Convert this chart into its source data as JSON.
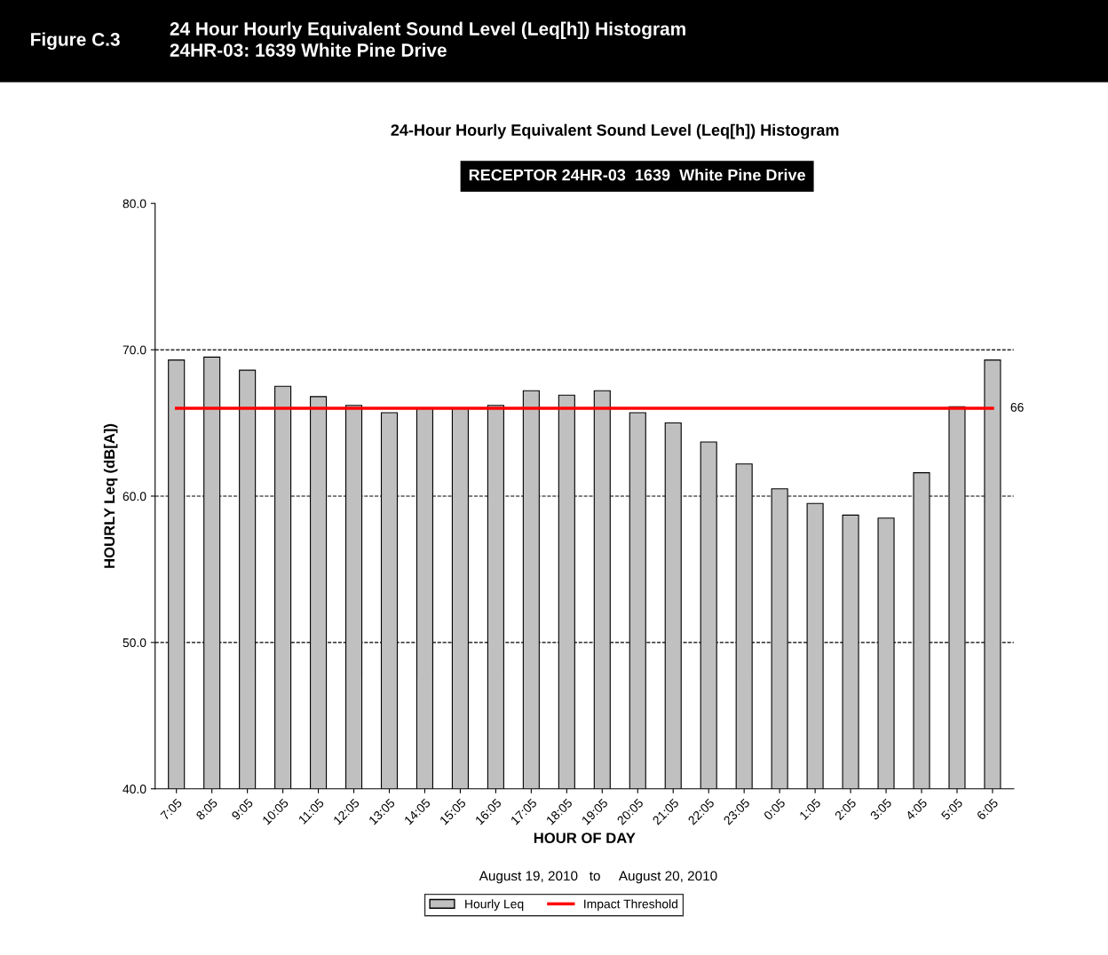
{
  "chart_data": {
    "type": "bar",
    "title": "24-Hour Hourly Equivalent Sound Level (Leq[h]) Histogram",
    "subtitle": "RECEPTOR 24HR-03  1639  White Pine Drive",
    "xlabel": "HOUR OF DAY",
    "ylabel": "HOURLY Leq (dB[A])",
    "annotations": [
      "Figure C.3",
      "24 Hour Hourly Equivalent Sound Level (Leq[h]) Histogram\n24HR-03: 1639 White Pine Drive",
      "August 19, 2010   to     August 20, 2010",
      {
        "text": "66",
        "x": "6:05",
        "y": 66
      }
    ],
    "categories": [
      "7:05",
      "8:05",
      "9:05",
      "10:05",
      "11:05",
      "12:05",
      "13:05",
      "14:05",
      "15:05",
      "16:05",
      "17:05",
      "18:05",
      "19:05",
      "20:05",
      "21:05",
      "22:05",
      "23:05",
      "0:05",
      "1:05",
      "2:05",
      "3:05",
      "4:05",
      "5:05",
      "6:05"
    ],
    "series": [
      {
        "name": "Hourly Leq",
        "color": "#c0c0c0",
        "values": [
          69.3,
          69.5,
          68.6,
          67.5,
          66.8,
          66.2,
          65.7,
          66.0,
          66.0,
          66.2,
          67.2,
          66.9,
          67.2,
          65.7,
          65.0,
          63.7,
          62.2,
          60.5,
          59.5,
          58.7,
          58.5,
          61.6,
          66.1,
          69.3
        ]
      },
      {
        "name": "Impact Threshold",
        "type": "line",
        "color": "#ff0000",
        "values": [
          66,
          66,
          66,
          66,
          66,
          66,
          66,
          66,
          66,
          66,
          66,
          66,
          66,
          66,
          66,
          66,
          66,
          66,
          66,
          66,
          66,
          66,
          66,
          66
        ]
      }
    ],
    "ylim": [
      40,
      80
    ],
    "yticks": [
      {
        "value": 40,
        "label": "40.0"
      },
      {
        "value": 50,
        "label": "50.0"
      },
      {
        "value": 60,
        "label": "60.0"
      },
      {
        "value": 70,
        "label": "70.0"
      },
      {
        "value": 80,
        "label": "80.0"
      }
    ],
    "grid": "y",
    "legend": "bottom"
  }
}
